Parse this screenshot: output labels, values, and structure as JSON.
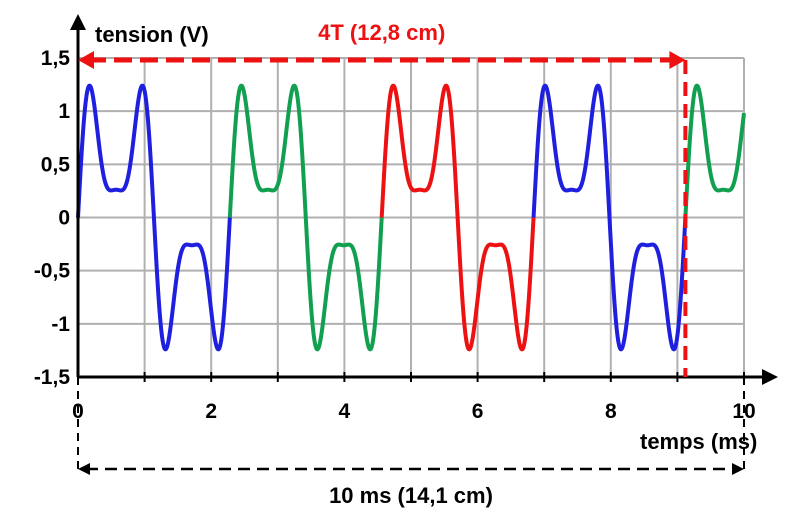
{
  "chart_data": {
    "type": "line",
    "xlabel": "temps (ms)",
    "ylabel": "tension (V)",
    "xlim": [
      0,
      10
    ],
    "ylim": [
      -1.5,
      1.5
    ],
    "grid": true,
    "x_ticks": [
      0,
      2,
      4,
      6,
      8,
      10
    ],
    "x_tick_labels": [
      "0",
      "2",
      "4",
      "6",
      "8",
      "10"
    ],
    "y_ticks": [
      1.5,
      1,
      0.5,
      0,
      -0.5,
      -1,
      -1.5
    ],
    "y_tick_labels": [
      "1,5",
      "1",
      "0,5",
      "0",
      "-0,5",
      "-1",
      "-1,5"
    ],
    "period_ms": 2.28,
    "series": [
      {
        "color": "#1f1fe0",
        "x_range": [
          0,
          2.28
        ]
      },
      {
        "color": "#10a050",
        "x_range": [
          2.28,
          4.56
        ]
      },
      {
        "color": "#ee1111",
        "x_range": [
          4.56,
          6.84
        ]
      },
      {
        "color": "#1f1fe0",
        "x_range": [
          6.84,
          9.12
        ]
      },
      {
        "color": "#10a050",
        "x_range": [
          9.12,
          10
        ]
      }
    ],
    "extrema": {
      "max": 1.24,
      "min": -1.24
    },
    "annotations": [
      {
        "text": "4T (12,8 cm)",
        "color": "#ee1111",
        "x_start": 0,
        "x_end": 9.12
      },
      {
        "text": "10 ms (14,1 cm)",
        "color": "#000000",
        "x_start": 0,
        "x_end": 10
      }
    ]
  }
}
